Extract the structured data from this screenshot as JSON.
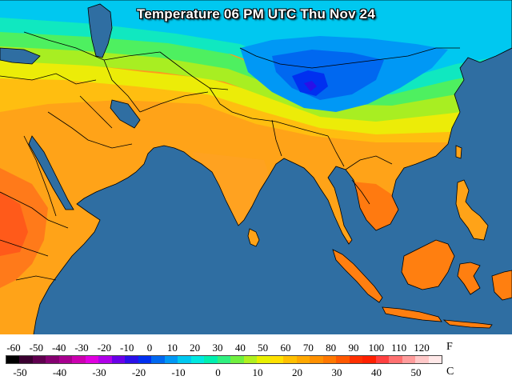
{
  "title": "Temperature 06 PM UTC Thu Nov 24",
  "legend": {
    "fahrenheit_unit": "F",
    "celsius_unit": "C",
    "fahrenheit_ticks": [
      "-60",
      "-50",
      "-40",
      "-30",
      "-20",
      "-10",
      "0",
      "10",
      "20",
      "30",
      "40",
      "50",
      "60",
      "70",
      "80",
      "90",
      "100",
      "110",
      "120"
    ],
    "celsius_ticks": [
      "-50",
      "-40",
      "-30",
      "-20",
      "-10",
      "0",
      "10",
      "20",
      "30",
      "40",
      "50"
    ],
    "colors": [
      "#000000",
      "#3a0030",
      "#60004f",
      "#850070",
      "#a8008f",
      "#cc00b0",
      "#e000e0",
      "#b000e8",
      "#6a00e8",
      "#2a10e8",
      "#0030f0",
      "#0068f0",
      "#0098f5",
      "#00c8f0",
      "#00e8e0",
      "#00f0b0",
      "#30f080",
      "#70f040",
      "#b0f020",
      "#e8f000",
      "#ffe000",
      "#ffc000",
      "#ffa800",
      "#ff9000",
      "#ff7800",
      "#ff5800",
      "#ff3000",
      "#ff2000",
      "#ff4040",
      "#ff7070",
      "#ff9c9c",
      "#ffc8c8",
      "#ffe8e8"
    ]
  },
  "map": {
    "ocean_color": "#2f6ea2",
    "region": "South & Southeast Asia, Middle East, East Africa"
  }
}
